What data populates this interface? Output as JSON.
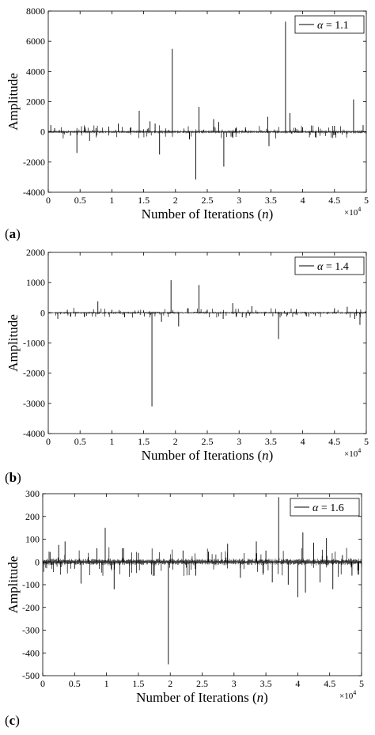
{
  "chart_data": [
    {
      "type": "line",
      "panel_label": "a",
      "xlabel": "Number of Iterations (n)",
      "ylabel": "Amplitude",
      "x_multiplier": "×10^4",
      "xlim": [
        0,
        5
      ],
      "ylim": [
        -4000,
        8000
      ],
      "xticks": [
        "0",
        "0.5",
        "1",
        "1.5",
        "2",
        "2.5",
        "3",
        "3.5",
        "4",
        "4.5",
        "5"
      ],
      "yticks": [
        "-4000",
        "-2000",
        "0",
        "2000",
        "4000",
        "6000",
        "8000"
      ],
      "ytick_values": [
        -4000,
        -2000,
        0,
        2000,
        4000,
        6000,
        8000
      ],
      "legend": {
        "label": "α = 1.1",
        "position": "top-right"
      },
      "noise_amplitude": 80,
      "series": [
        {
          "name": "α = 1.1",
          "color": "#000000",
          "x": [
            0.04,
            0.1,
            0.35,
            0.45,
            0.58,
            0.65,
            0.75,
            0.95,
            1.1,
            1.3,
            1.43,
            1.6,
            1.68,
            1.75,
            1.95,
            2.22,
            2.32,
            2.37,
            2.6,
            2.68,
            2.76,
            2.9,
            3.1,
            3.45,
            3.47,
            3.73,
            3.8,
            4.0,
            4.2,
            4.5,
            4.8,
            4.95
          ],
          "y": [
            450,
            250,
            -250,
            -1400,
            300,
            -600,
            250,
            350,
            550,
            300,
            1400,
            700,
            550,
            -1500,
            5500,
            -500,
            -3150,
            1650,
            850,
            650,
            -2300,
            -400,
            300,
            1000,
            -950,
            7300,
            1250,
            300,
            -350,
            400,
            2150,
            450
          ]
        }
      ]
    },
    {
      "type": "line",
      "panel_label": "b",
      "xlabel": "Number of Iterations (n)",
      "ylabel": "Amplitude",
      "x_multiplier": "×10^4",
      "xlim": [
        0,
        5
      ],
      "ylim": [
        -4000,
        2000
      ],
      "xticks": [
        "0",
        "0.5",
        "1",
        "1.5",
        "2",
        "2.5",
        "3",
        "3.5",
        "4",
        "4.5",
        "5"
      ],
      "yticks": [
        "-4000",
        "-3000",
        "-2000",
        "-1000",
        "0",
        "1000",
        "2000"
      ],
      "ytick_values": [
        -4000,
        -3000,
        -2000,
        -1000,
        0,
        1000,
        2000
      ],
      "legend": {
        "label": "α = 1.4",
        "position": "top-right"
      },
      "noise_amplitude": 30,
      "series": [
        {
          "name": "α = 1.4",
          "color": "#000000",
          "x": [
            0.15,
            0.3,
            0.6,
            0.78,
            1.0,
            1.2,
            1.5,
            1.63,
            1.78,
            1.93,
            2.05,
            2.2,
            2.37,
            2.5,
            2.75,
            2.9,
            3.05,
            3.2,
            3.4,
            3.62,
            3.9,
            4.2,
            4.5,
            4.7,
            4.82,
            4.9
          ],
          "y": [
            -200,
            100,
            -100,
            380,
            100,
            -150,
            80,
            -3100,
            -300,
            1080,
            -450,
            150,
            920,
            100,
            -200,
            320,
            -150,
            220,
            -100,
            -870,
            120,
            -100,
            150,
            200,
            -200,
            -400
          ]
        }
      ]
    },
    {
      "type": "line",
      "panel_label": "c",
      "xlabel": "Number of Iterations (n)",
      "ylabel": "Amplitude",
      "x_multiplier": "×10^4",
      "xlim": [
        0,
        5
      ],
      "ylim": [
        -500,
        300
      ],
      "xticks": [
        "0",
        "0.5",
        "1",
        "1.5",
        "2",
        "2.5",
        "3",
        "3.5",
        "4",
        "4.5",
        "5"
      ],
      "yticks": [
        "-500",
        "-400",
        "-300",
        "-200",
        "-100",
        "0",
        "100",
        "200",
        "300"
      ],
      "ytick_values": [
        -500,
        -400,
        -300,
        -200,
        -100,
        0,
        100,
        200,
        300
      ],
      "legend": {
        "label": "α = 1.6",
        "position": "top-right"
      },
      "noise_amplitude": 12,
      "series": [
        {
          "name": "α = 1.6",
          "color": "#000000",
          "x": [
            0.1,
            0.25,
            0.35,
            0.5,
            0.6,
            0.85,
            0.98,
            1.12,
            1.25,
            1.5,
            1.75,
            1.97,
            2.2,
            2.4,
            2.6,
            2.9,
            3.1,
            3.35,
            3.5,
            3.6,
            3.7,
            3.85,
            4.0,
            4.08,
            4.12,
            4.25,
            4.35,
            4.45,
            4.55,
            4.7,
            4.85
          ],
          "y": [
            45,
            75,
            90,
            -30,
            -95,
            60,
            150,
            -120,
            60,
            40,
            -60,
            -450,
            50,
            -60,
            45,
            80,
            -70,
            90,
            50,
            -90,
            285,
            -100,
            -155,
            130,
            -135,
            85,
            -90,
            105,
            -120,
            30,
            -60
          ]
        }
      ]
    }
  ]
}
